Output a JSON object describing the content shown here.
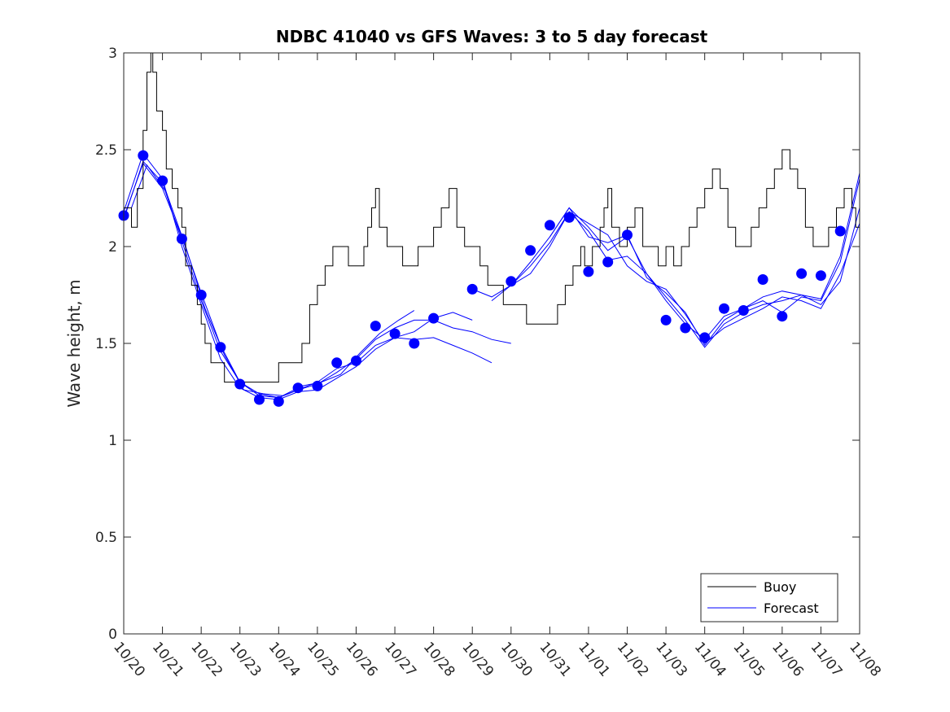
{
  "chart_data": {
    "type": "line",
    "title": "NDBC 41040 vs GFS Waves: 3 to 5 day forecast",
    "xlabel": "",
    "ylabel": "Wave height, m",
    "xlim": [
      0,
      19
    ],
    "ylim": [
      0,
      3
    ],
    "x_tick_labels": [
      "10/20",
      "10/21",
      "10/22",
      "10/23",
      "10/24",
      "10/25",
      "10/26",
      "10/27",
      "10/28",
      "10/29",
      "10/30",
      "10/31",
      "11/01",
      "11/02",
      "11/03",
      "11/04",
      "11/05",
      "11/06",
      "11/07",
      "11/08"
    ],
    "y_ticks": [
      0,
      0.5,
      1,
      1.5,
      2,
      2.5,
      3
    ],
    "y_tick_labels": [
      "0",
      "0.5",
      "1",
      "1.5",
      "2",
      "2.5",
      "3"
    ],
    "legend": {
      "position": "bottom-right",
      "entries": [
        "Buoy",
        "Forecast"
      ]
    },
    "colors": {
      "buoy": "#000000",
      "forecast": "#0000ff",
      "axis": "#262626"
    },
    "series": [
      {
        "name": "Buoy",
        "x": [
          0,
          0.2,
          0.35,
          0.5,
          0.6,
          0.7,
          0.75,
          0.85,
          1,
          1.1,
          1.25,
          1.4,
          1.5,
          1.6,
          1.75,
          1.9,
          2.0,
          2.1,
          2.25,
          2.4,
          2.5,
          2.6,
          2.75,
          2.9,
          3.0,
          3.2,
          3.4,
          3.6,
          3.8,
          4.0,
          4.2,
          4.4,
          4.6,
          4.8,
          5.0,
          5.2,
          5.4,
          5.6,
          5.8,
          6.0,
          6.1,
          6.2,
          6.3,
          6.4,
          6.5,
          6.6,
          6.8,
          7.0,
          7.2,
          7.4,
          7.6,
          7.8,
          8.0,
          8.2,
          8.4,
          8.6,
          8.8,
          9.0,
          9.2,
          9.4,
          9.6,
          9.8,
          10.0,
          10.2,
          10.4,
          10.6,
          10.8,
          11.0,
          11.2,
          11.4,
          11.6,
          11.8,
          11.9,
          12.0,
          12.1,
          12.2,
          12.3,
          12.4,
          12.5,
          12.6,
          12.8,
          13.0,
          13.2,
          13.4,
          13.6,
          13.8,
          14.0,
          14.2,
          14.4,
          14.6,
          14.8,
          15.0,
          15.2,
          15.4,
          15.6,
          15.8,
          16.0,
          16.2,
          16.4,
          16.6,
          16.8,
          17.0,
          17.2,
          17.4,
          17.6,
          17.8,
          18.0,
          18.2,
          18.4,
          18.6,
          18.8,
          18.9,
          19.0
        ],
        "y": [
          2.2,
          2.1,
          2.3,
          2.6,
          2.9,
          3.0,
          2.9,
          2.7,
          2.6,
          2.4,
          2.3,
          2.2,
          2.1,
          1.9,
          1.8,
          1.7,
          1.6,
          1.5,
          1.4,
          1.4,
          1.4,
          1.3,
          1.3,
          1.3,
          1.3,
          1.3,
          1.3,
          1.3,
          1.3,
          1.4,
          1.4,
          1.4,
          1.5,
          1.7,
          1.8,
          1.9,
          2.0,
          2.0,
          1.9,
          1.9,
          1.9,
          2.0,
          2.1,
          2.2,
          2.3,
          2.1,
          2.0,
          2.0,
          1.9,
          1.9,
          2.0,
          2.0,
          2.1,
          2.2,
          2.3,
          2.1,
          2.0,
          2.0,
          1.9,
          1.8,
          1.8,
          1.7,
          1.7,
          1.7,
          1.6,
          1.6,
          1.6,
          1.6,
          1.7,
          1.8,
          1.9,
          2.0,
          1.9,
          1.9,
          2.0,
          2.0,
          2.1,
          2.2,
          2.3,
          2.1,
          2.0,
          2.1,
          2.2,
          2.0,
          2.0,
          1.9,
          2.0,
          1.9,
          2.0,
          2.1,
          2.2,
          2.3,
          2.4,
          2.3,
          2.1,
          2.0,
          2.0,
          2.1,
          2.2,
          2.3,
          2.4,
          2.5,
          2.4,
          2.3,
          2.1,
          2.0,
          2.0,
          2.1,
          2.2,
          2.3,
          2.2,
          2.1,
          2.0
        ]
      },
      {
        "name": "Forecast markers",
        "x": [
          0.0,
          0.5,
          1.0,
          1.5,
          2.0,
          2.5,
          3.0,
          3.5,
          4.0,
          4.5,
          5.0,
          5.5,
          6.0,
          6.5,
          7.0,
          7.5,
          8.0,
          9.0,
          10.0,
          10.5,
          11.0,
          11.5,
          12.0,
          12.5,
          13.0,
          14.0,
          14.5,
          15.0,
          15.5,
          16.0,
          16.5,
          17.0,
          17.5,
          18.0,
          18.5
        ],
        "y": [
          2.16,
          2.47,
          2.34,
          2.04,
          1.75,
          1.48,
          1.29,
          1.21,
          1.2,
          1.27,
          1.28,
          1.4,
          1.41,
          1.59,
          1.55,
          1.5,
          1.63,
          1.78,
          1.82,
          1.98,
          2.11,
          2.15,
          1.87,
          1.92,
          2.06,
          1.62,
          1.58,
          1.53,
          1.68,
          1.67,
          1.83,
          1.64,
          1.86,
          1.85,
          2.08
        ]
      }
    ],
    "forecast_lines": [
      {
        "x": [
          0,
          0.5,
          1,
          1.5,
          2,
          2.5,
          3,
          3.5,
          4,
          4.5,
          5,
          5.5,
          6,
          6.5,
          7,
          7.5,
          8,
          8.5,
          9,
          9.5,
          10
        ],
        "y": [
          2.14,
          2.44,
          2.33,
          2.03,
          1.72,
          1.46,
          1.3,
          1.24,
          1.22,
          1.26,
          1.29,
          1.35,
          1.42,
          1.52,
          1.58,
          1.62,
          1.62,
          1.58,
          1.56,
          1.52,
          1.5
        ]
      },
      {
        "x": [
          0,
          0.5,
          1,
          1.5,
          2,
          2.5,
          3,
          3.5,
          4,
          4.5,
          5,
          5.5,
          6,
          6.5,
          7,
          7.5,
          8,
          8.5,
          9
        ],
        "y": [
          2.18,
          2.48,
          2.35,
          2.0,
          1.7,
          1.42,
          1.27,
          1.22,
          1.21,
          1.25,
          1.26,
          1.32,
          1.38,
          1.47,
          1.53,
          1.56,
          1.63,
          1.66,
          1.62
        ]
      },
      {
        "x": [
          0,
          0.5,
          1,
          1.5,
          2,
          2.5,
          3,
          3.5,
          4,
          4.5,
          5,
          5.5,
          6,
          6.5,
          7,
          7.5,
          8,
          8.5,
          9,
          9.5
        ],
        "y": [
          2.15,
          2.43,
          2.3,
          2.05,
          1.76,
          1.49,
          1.3,
          1.23,
          1.22,
          1.26,
          1.3,
          1.37,
          1.4,
          1.49,
          1.53,
          1.52,
          1.53,
          1.49,
          1.45,
          1.4
        ]
      },
      {
        "x": [
          0.2,
          0.6,
          1.1,
          1.6,
          2.1,
          2.6,
          3.1,
          3.6,
          4.1,
          4.6,
          5.1,
          5.6,
          6.1,
          6.6,
          7.1,
          7.5
        ],
        "y": [
          2.2,
          2.42,
          2.28,
          2.0,
          1.68,
          1.44,
          1.26,
          1.24,
          1.23,
          1.28,
          1.3,
          1.34,
          1.45,
          1.55,
          1.62,
          1.67
        ]
      },
      {
        "x": [
          9,
          9.5,
          10,
          10.5,
          11,
          11.5,
          12,
          12.5,
          13,
          13.5,
          14,
          14.5,
          15,
          15.5,
          16,
          16.5,
          17,
          17.5,
          18,
          18.5,
          19
        ],
        "y": [
          1.78,
          1.74,
          1.8,
          1.92,
          2.05,
          2.2,
          2.1,
          1.98,
          2.05,
          1.86,
          1.72,
          1.6,
          1.52,
          1.64,
          1.68,
          1.72,
          1.66,
          1.74,
          1.72,
          1.92,
          2.35
        ]
      },
      {
        "x": [
          9.5,
          10,
          10.5,
          11,
          11.5,
          12,
          12.5,
          13,
          13.5,
          14,
          14.5,
          15,
          15.5,
          16,
          16.5,
          17,
          17.5,
          18,
          18.5,
          19
        ],
        "y": [
          1.72,
          1.8,
          1.86,
          2.0,
          2.18,
          2.08,
          1.93,
          1.95,
          1.86,
          1.74,
          1.62,
          1.48,
          1.6,
          1.66,
          1.7,
          1.72,
          1.75,
          1.7,
          1.82,
          2.2
        ]
      },
      {
        "x": [
          10,
          10.5,
          11,
          11.5,
          12,
          12.5,
          13,
          13.5,
          14,
          14.5,
          15,
          15.5,
          16,
          16.5,
          17,
          17.5,
          18,
          18.5,
          19
        ],
        "y": [
          1.8,
          1.9,
          2.02,
          2.18,
          2.12,
          2.06,
          1.9,
          1.82,
          1.78,
          1.65,
          1.5,
          1.58,
          1.63,
          1.68,
          1.74,
          1.72,
          1.68,
          1.86,
          2.12
        ]
      },
      {
        "x": [
          11,
          11.5,
          12,
          12.5,
          13,
          13.5,
          14,
          14.5,
          15,
          15.5,
          16,
          16.5,
          17,
          17.5,
          18,
          18.5,
          19
        ],
        "y": [
          2.05,
          2.2,
          2.05,
          2.02,
          2.06,
          1.84,
          1.76,
          1.66,
          1.49,
          1.62,
          1.68,
          1.74,
          1.77,
          1.75,
          1.73,
          1.95,
          2.38
        ]
      }
    ]
  }
}
